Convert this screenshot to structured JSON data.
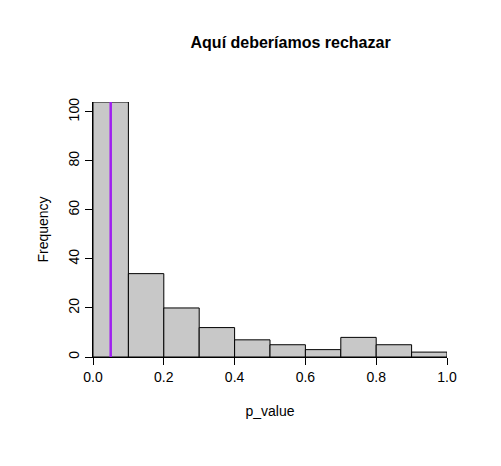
{
  "chart_data": {
    "type": "histogram",
    "title": "Aquí deberíamos rechazar",
    "x_label": "p_value",
    "y_label": "Frequency",
    "bins": [
      0,
      0.1,
      0.2,
      0.3,
      0.4,
      0.5,
      0.6,
      0.7,
      0.8,
      0.9,
      1.0
    ],
    "values": [
      104,
      34,
      20,
      12,
      7,
      5,
      3,
      8,
      5,
      2
    ],
    "color": "#c8c8c8",
    "xlim": [
      0,
      1
    ],
    "xticks": [
      {
        "value": 0,
        "label": "0.0"
      },
      0.2,
      0.4,
      0.6,
      0.8,
      {
        "value": 1,
        "label": "1.0"
      }
    ],
    "ylim": [
      0,
      104
    ],
    "yticks": [
      0,
      20,
      40,
      60,
      80,
      100
    ],
    "grid": false,
    "reference_line": {
      "x": 0.05,
      "color": "#a020f0"
    }
  }
}
